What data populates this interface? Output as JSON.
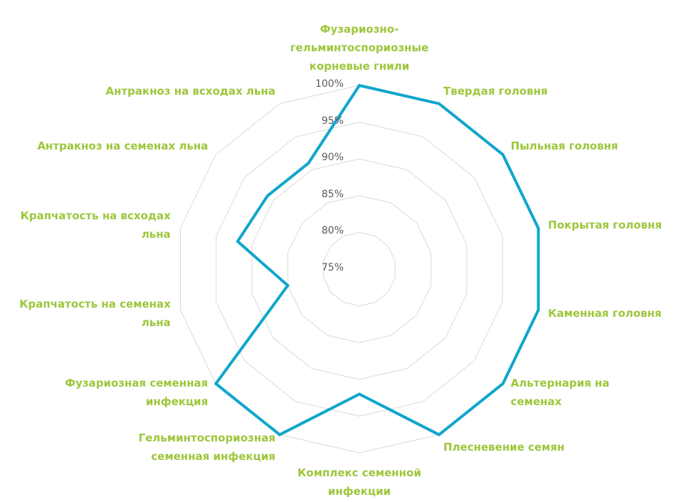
{
  "chart_data": {
    "type": "radar",
    "categories": [
      "Фузариозно-гельминтоспориозные корневые гнили",
      "Твердая головня",
      "Пыльная головня",
      "Покрытая головня",
      "Каменная головня",
      "Альтернария на семенах",
      "Плесневение семян",
      "Комплекс семенной инфекции",
      "Гельминтоспориозная семенная инфекция",
      "Фузариозная семенная инфекция",
      "Крапчатость на семенах льна",
      "Крапчатость на всходах льна",
      "Антракноз на семенах льна",
      "Антракноз на всходах льна"
    ],
    "series": [
      {
        "color": "#10a6cc",
        "values": [
          100,
          100,
          100,
          100,
          100,
          100,
          100,
          92,
          100,
          100,
          85,
          92,
          91,
          91
        ]
      }
    ],
    "ylim": [
      75,
      100
    ],
    "yticks": [
      {
        "value": 75,
        "label": "75%"
      },
      {
        "value": 80,
        "label": "80%"
      },
      {
        "value": 85,
        "label": "85%"
      },
      {
        "value": 90,
        "label": "90%"
      },
      {
        "value": 95,
        "label": "95%"
      },
      {
        "value": 100,
        "label": "100%"
      }
    ],
    "grid": true,
    "label_color": "#9dc63b"
  }
}
